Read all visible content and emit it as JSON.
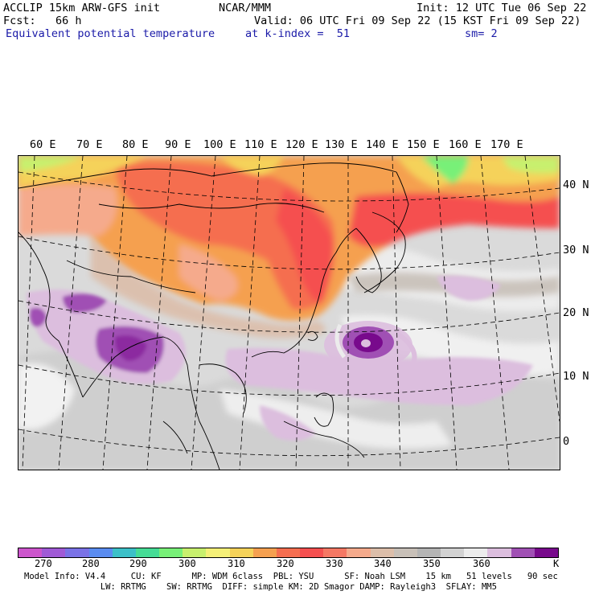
{
  "header": {
    "line1_left": "ACCLIP 15km ARW-GFS init",
    "line1_mid": "NCAR/MMM",
    "line1_right": "Init: 12 UTC Tue 06 Sep 22",
    "line2_left": "Fcst:   66 h",
    "line2_right": "Valid: 06 UTC Fri 09 Sep 22 (15 KST Fri 09 Sep 22)",
    "line3_left": "Equivalent potential temperature",
    "line3_mid": "at k-index =  51",
    "line3_right": "sm= 2"
  },
  "map": {
    "lon_labels": [
      "60 E",
      "70 E",
      "80 E",
      "90 E",
      "100 E",
      "110 E",
      "120 E",
      "130 E",
      "140 E",
      "150 E",
      "160 E",
      "170 E"
    ],
    "lat_labels": [
      "40 N",
      "30 N",
      "20 N",
      "10 N",
      "0"
    ],
    "typhoon_center": {
      "lon": 140,
      "lat": 17
    }
  },
  "colorbar": {
    "unit": "K",
    "tick_labels": [
      "270",
      "280",
      "290",
      "300",
      "310",
      "320",
      "330",
      "340",
      "350",
      "360"
    ],
    "colors": [
      "#cc55cc",
      "#a05ad6",
      "#7a72e6",
      "#5a8cf0",
      "#3cc0c8",
      "#46dc96",
      "#78f078",
      "#c8f06e",
      "#f5f078",
      "#f5d25a",
      "#f5a050",
      "#f56e50",
      "#f55050",
      "#f57864",
      "#f5aa8c",
      "#dcbeaa",
      "#c8c0b8",
      "#b4b4b4",
      "#d2d2d2",
      "#ececec",
      "#dcbede",
      "#a050b4",
      "#780a8c"
    ]
  },
  "footer": {
    "line1": "Model Info: V4.4     CU: KF      MP: WDM 6class  PBL: YSU      SF: Noah LSM    15 km   51 levels   90 sec",
    "line2": "               LW: RRTMG    SW: RRTMG  DIFF: simple KM: 2D Smagor DAMP: Rayleigh3  SFLAY: MM5"
  }
}
